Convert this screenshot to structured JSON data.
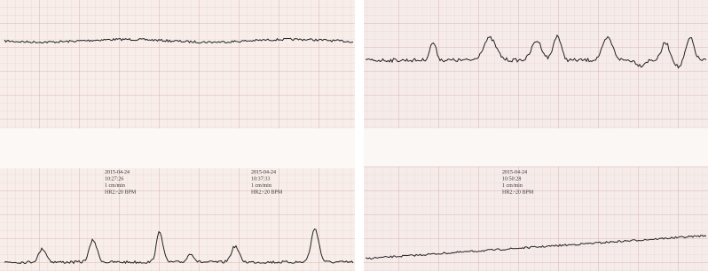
{
  "annotations": [
    {
      "lines": [
        "2015-04-24",
        "10:27:26",
        "1 cm/min",
        "HR2:-20 BPM"
      ]
    },
    {
      "lines": [
        "2015-04-24",
        "10:37:33",
        "1 cm/min",
        "HR2:-20 BPM"
      ]
    },
    {
      "lines": [
        "2015-04-24",
        "10:50:28",
        "1 cm/min",
        "HR2:-20 BPM"
      ]
    }
  ]
}
